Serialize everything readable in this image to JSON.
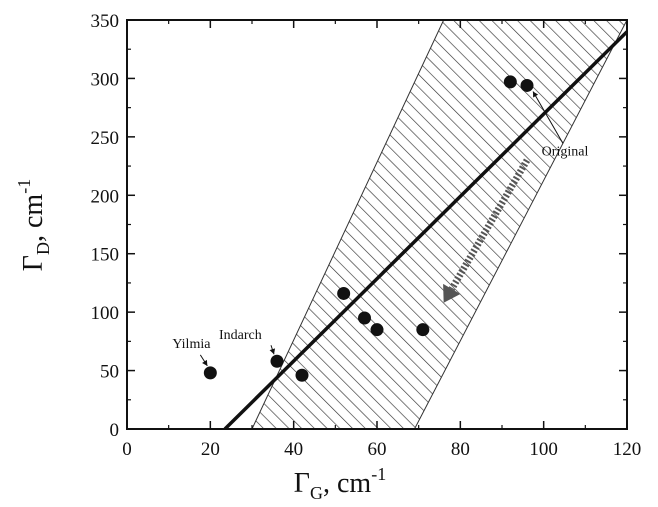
{
  "chart_data": {
    "type": "scatter",
    "xlim": [
      0,
      120
    ],
    "ylim": [
      0,
      350
    ],
    "xticks": [
      0,
      20,
      40,
      60,
      80,
      100,
      120
    ],
    "yticks": [
      0,
      50,
      100,
      150,
      200,
      250,
      300,
      350
    ],
    "x_tick_labels": [
      "0",
      "20",
      "40",
      "60",
      "80",
      "100",
      "120"
    ],
    "y_tick_labels": [
      "0",
      "50",
      "100",
      "150",
      "200",
      "250",
      "300",
      "350"
    ],
    "xlabel": {
      "main": "Γ",
      "sub": "G",
      "unit": ", cm",
      "sup": "-1"
    },
    "ylabel": {
      "main": "Γ",
      "sub": "D",
      "unit": ", cm",
      "sup": "-1"
    },
    "grid": false,
    "legend": "none",
    "points": [
      {
        "x": 20,
        "y": 48
      },
      {
        "x": 36,
        "y": 58
      },
      {
        "x": 42,
        "y": 46
      },
      {
        "x": 52,
        "y": 116
      },
      {
        "x": 57,
        "y": 95
      },
      {
        "x": 60,
        "y": 85
      },
      {
        "x": 71,
        "y": 85
      },
      {
        "x": 92,
        "y": 297
      },
      {
        "x": 96,
        "y": 294
      }
    ],
    "fit_line": {
      "x": [
        23.5,
        120
      ],
      "y": [
        0,
        340
      ]
    },
    "band": [
      [
        30,
        0
      ],
      [
        69,
        0
      ],
      [
        120,
        350
      ],
      [
        76,
        350
      ]
    ],
    "arrow": {
      "from": [
        96,
        230
      ],
      "to": [
        76,
        108
      ]
    },
    "annotations": [
      {
        "text": "Yilmia",
        "x": 20,
        "y": 48
      },
      {
        "text": "Indarch",
        "x": 36,
        "y": 58
      },
      {
        "text": "Original",
        "x": 96,
        "y": 294
      }
    ],
    "colors": {
      "points": "#111111",
      "line": "#111111",
      "hatch": "#333333",
      "arrow": "#555555"
    }
  }
}
